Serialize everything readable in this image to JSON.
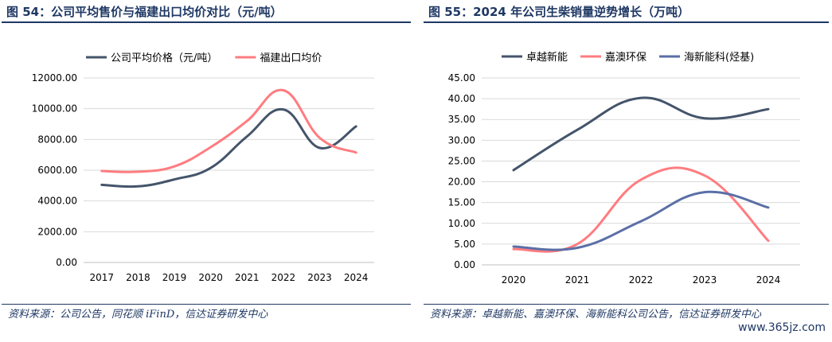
{
  "panels": [
    {
      "title": "图 54：公司平均售价与福建出口均价对比（元/吨）",
      "source": "资料来源：公司公告，同花顺 iFinD，信达证券研发中心"
    },
    {
      "title": "图 55：2024 年公司生柴销量逆势增长（万吨）",
      "source": "资料来源：卓越新能、嘉澳环保、海新能科公司公告，信达证券研发中心"
    }
  ],
  "watermark": "www.365jz.com",
  "colors": {
    "navy": "#44546a",
    "salmon": "#ff7c80",
    "blue": "#5b6fa6",
    "grid": "#d9d9d9",
    "title": "#1f3864"
  },
  "chart_data": [
    {
      "type": "line",
      "title": "图 54：公司平均售价与福建出口均价对比（元/吨）",
      "categories": [
        "2017",
        "2018",
        "2019",
        "2020",
        "2021",
        "2022",
        "2023",
        "2024"
      ],
      "series": [
        {
          "name": "公司平均价格（元/吨）",
          "color": "#44546a",
          "values": [
            5050,
            4950,
            5400,
            6150,
            8200,
            9950,
            7450,
            8850
          ]
        },
        {
          "name": "福建出口均价",
          "color": "#ff7c80",
          "values": [
            5950,
            5900,
            6250,
            7500,
            9200,
            11200,
            8100,
            7150
          ]
        }
      ],
      "yticks": [
        "0.00",
        "2000.00",
        "4000.00",
        "6000.00",
        "8000.00",
        "10000.00",
        "12000.00"
      ],
      "ylim": [
        0,
        12000
      ],
      "grid": true,
      "legend": "top"
    },
    {
      "type": "line",
      "title": "图 55：2024 年公司生柴销量逆势增长（万吨）",
      "categories": [
        "2020",
        "2021",
        "2022",
        "2023",
        "2024"
      ],
      "series": [
        {
          "name": "卓越新能",
          "color": "#44546a",
          "values": [
            22.8,
            32.5,
            40.2,
            35.3,
            37.5
          ]
        },
        {
          "name": "嘉澳环保",
          "color": "#ff7c80",
          "values": [
            3.8,
            5.0,
            20.5,
            21.5,
            5.8
          ]
        },
        {
          "name": "海新能科(烃基)",
          "color": "#5b6fa6",
          "values": [
            4.4,
            4.1,
            10.5,
            17.5,
            13.8
          ]
        }
      ],
      "yticks": [
        "0.00",
        "5.00",
        "10.00",
        "15.00",
        "20.00",
        "25.00",
        "30.00",
        "35.00",
        "40.00",
        "45.00"
      ],
      "ylim": [
        0,
        45
      ],
      "grid": true,
      "legend": "top"
    }
  ]
}
